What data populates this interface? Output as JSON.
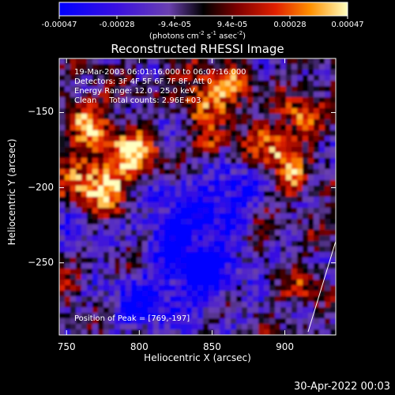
{
  "chart_data": {
    "type": "heatmap",
    "title": "Reconstructed RHESSI Image",
    "xlabel": "Heliocentric X (arcsec)",
    "ylabel": "Heliocentric Y (arcsec)",
    "xlim": [
      745,
      935
    ],
    "ylim": [
      -298,
      -114
    ],
    "xticks": [
      "750",
      "800",
      "850",
      "900"
    ],
    "yticks": [
      "-150",
      "-200",
      "-250"
    ],
    "colorbar": {
      "ticks": [
        "-0.00047",
        "-0.00028",
        "-9.4e-05",
        "9.4e-05",
        "0.00028",
        "0.00047"
      ],
      "range": [
        -0.00047,
        0.00047
      ],
      "units_main": "(photons cm",
      "units_exp1": "-2",
      "units_s": " s",
      "units_exp2": "-1",
      "units_asec": " asec",
      "units_exp3": "-2",
      "units_end": ")"
    },
    "annotations": {
      "time": "19-Mar-2003 06:01:16.000 to 06:07:16.000",
      "detectors": "Detectors: 3F 4F 5F 6F 7F 8F, Att 0",
      "energy": "Energy Range: 12.0 - 25.0 keV",
      "clean": "Clean     Total counts: 2.96E+03",
      "peak": "Position of Peak = [769,-197]"
    },
    "peak": [
      769,
      -197
    ]
  },
  "footer": {
    "date": "30-Apr-2022 00:03"
  }
}
